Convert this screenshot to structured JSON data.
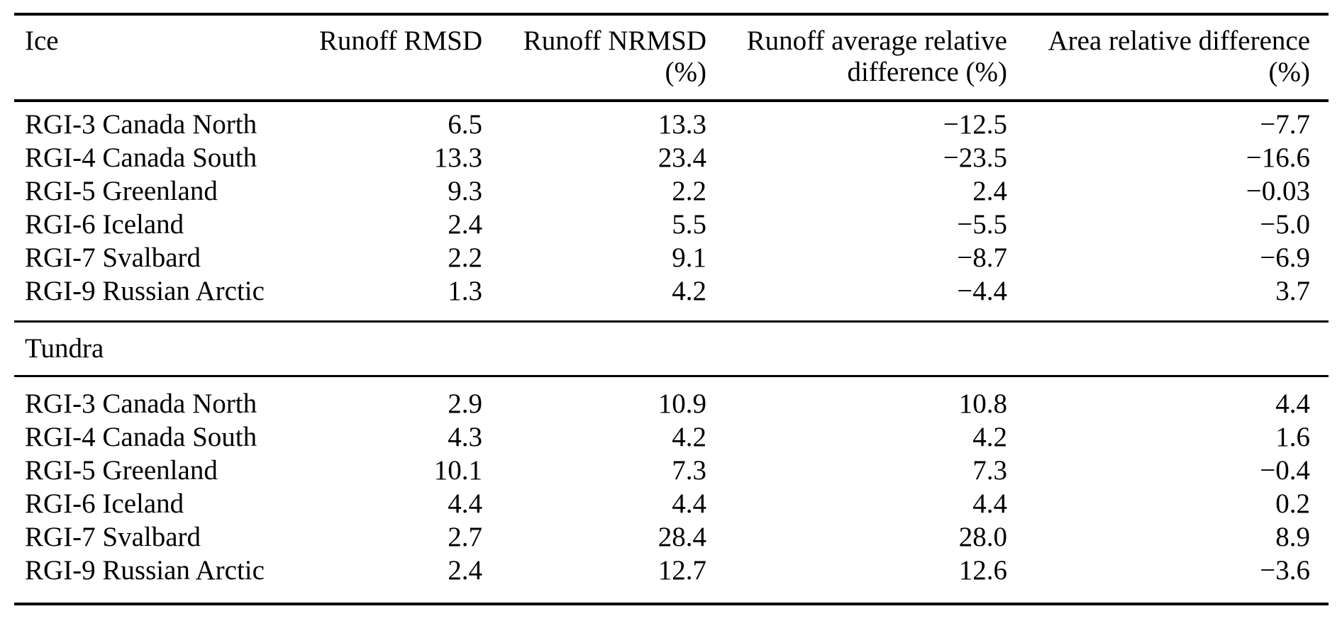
{
  "colors": {
    "text": "#000000",
    "background": "#ffffff",
    "rule": "#000000"
  },
  "table": {
    "column_headers": [
      {
        "line1": "Ice",
        "line2": ""
      },
      {
        "line1": "Runoff RMSD",
        "line2": ""
      },
      {
        "line1": "Runoff NRMSD",
        "line2": "(%)"
      },
      {
        "line1": "Runoff average relative",
        "line2": "difference (%)"
      },
      {
        "line1": "Area relative difference",
        "line2": "(%)"
      }
    ],
    "tundra_section_label": "Tundra",
    "ice_rows": [
      {
        "label": "RGI-3 Canada North",
        "values": [
          "6.5",
          "13.3",
          "−12.5",
          "−7.7"
        ]
      },
      {
        "label": "RGI-4 Canada South",
        "values": [
          "13.3",
          "23.4",
          "−23.5",
          "−16.6"
        ]
      },
      {
        "label": "RGI-5 Greenland",
        "values": [
          "9.3",
          "2.2",
          "2.4",
          "−0.03"
        ]
      },
      {
        "label": "RGI-6 Iceland",
        "values": [
          "2.4",
          "5.5",
          "−5.5",
          "−5.0"
        ]
      },
      {
        "label": "RGI-7 Svalbard",
        "values": [
          "2.2",
          "9.1",
          "−8.7",
          "−6.9"
        ]
      },
      {
        "label": "RGI-9 Russian Arctic",
        "values": [
          "1.3",
          "4.2",
          "−4.4",
          "3.7"
        ]
      }
    ],
    "tundra_rows": [
      {
        "label": "RGI-3 Canada North",
        "values": [
          "2.9",
          "10.9",
          "10.8",
          "4.4"
        ]
      },
      {
        "label": "RGI-4 Canada South",
        "values": [
          "4.3",
          "4.2",
          "4.2",
          "1.6"
        ]
      },
      {
        "label": "RGI-5 Greenland",
        "values": [
          "10.1",
          "7.3",
          "7.3",
          "−0.4"
        ]
      },
      {
        "label": "RGI-6 Iceland",
        "values": [
          "4.4",
          "4.4",
          "4.4",
          "0.2"
        ]
      },
      {
        "label": "RGI-7 Svalbard",
        "values": [
          "2.7",
          "28.4",
          "28.0",
          "8.9"
        ]
      },
      {
        "label": "RGI-9 Russian Arctic",
        "values": [
          "2.4",
          "12.7",
          "12.6",
          "−3.6"
        ]
      }
    ]
  }
}
